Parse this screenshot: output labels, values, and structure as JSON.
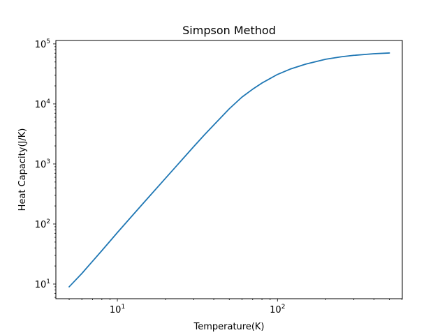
{
  "chart_data": {
    "type": "line",
    "title": "Simpson Method",
    "xlabel": "Temperature(K)",
    "ylabel": "Heat Capacity(J/K)",
    "xscale": "log",
    "yscale": "log",
    "xlim": [
      4.13,
      602
    ],
    "ylim": [
      5.7,
      114000
    ],
    "grid": false,
    "legend": "none",
    "line_color": "#1f77b4",
    "x_ticks": [
      {
        "base": "10",
        "exp": "1",
        "value": 10
      },
      {
        "base": "10",
        "exp": "2",
        "value": 100
      }
    ],
    "y_ticks": [
      {
        "base": "10",
        "exp": "1",
        "value": 10
      },
      {
        "base": "10",
        "exp": "2",
        "value": 100
      },
      {
        "base": "10",
        "exp": "3",
        "value": 1000
      },
      {
        "base": "10",
        "exp": "4",
        "value": 10000
      },
      {
        "base": "10",
        "exp": "5",
        "value": 100000
      }
    ],
    "series": [
      {
        "x": [
          5,
          6,
          7,
          8,
          10,
          12,
          15,
          20,
          25,
          30,
          35,
          40,
          50,
          60,
          70,
          80,
          100,
          120,
          150,
          200,
          250,
          300,
          400,
          500
        ],
        "y": [
          9,
          15,
          24,
          36,
          72,
          125,
          245,
          580,
          1130,
          1950,
          3060,
          4450,
          8300,
          13000,
          17600,
          22300,
          31000,
          38000,
          46000,
          55500,
          61000,
          64500,
          68500,
          70500
        ]
      }
    ]
  }
}
